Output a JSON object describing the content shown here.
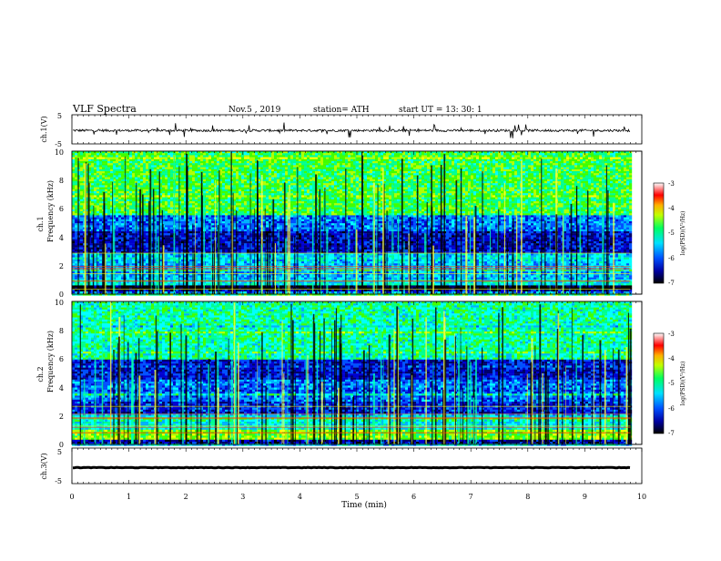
{
  "header": {
    "title": "VLF  Spectra",
    "date": "Nov.5  , 2019",
    "station": "station= ATH",
    "start": "start  UT  =    13: 30: 1"
  },
  "chart_data": [
    {
      "type": "line",
      "panel": "ch1-waveform",
      "ylabel": "ch.1(V)",
      "yticks": [
        "5",
        "-5"
      ],
      "ylim": [
        -5,
        5
      ],
      "xlim": [
        0,
        10
      ],
      "data_xlim": [
        0,
        9.8
      ],
      "baseline": -0.4,
      "noise_amplitude": 0.8,
      "spike_amplitude": 2.6,
      "line_color": "#000000"
    },
    {
      "type": "heatmap",
      "panel": "ch1-spectrogram",
      "ylabel": "ch.1",
      "ylabel2": "Frequency  (kHz)",
      "yticks": [
        "10",
        "8",
        "6",
        "4",
        "2",
        "0"
      ],
      "ylim": [
        0,
        10
      ],
      "xlim": [
        0,
        10
      ],
      "data_xlim": [
        0,
        9.8
      ],
      "band_levels": [
        {
          "f0": 0.0,
          "f1": 0.25,
          "level": 0.3
        },
        {
          "f0": 0.25,
          "f1": 0.6,
          "level": 0.05
        },
        {
          "f0": 0.6,
          "f1": 1.0,
          "level": 0.42
        },
        {
          "f0": 1.0,
          "f1": 2.2,
          "level": 0.35
        },
        {
          "f0": 2.2,
          "f1": 2.8,
          "level": 0.38
        },
        {
          "f0": 2.8,
          "f1": 4.5,
          "level": 0.18
        },
        {
          "f0": 4.5,
          "f1": 5.5,
          "level": 0.3
        },
        {
          "f0": 5.5,
          "f1": 10.0,
          "level": 0.55
        }
      ],
      "colorbar": {
        "label": "log(PSD)(V²/Hz)",
        "ticks": [
          "-3",
          "-4",
          "-5",
          "-6",
          "-7"
        ],
        "range": [
          -7,
          -3
        ]
      }
    },
    {
      "type": "heatmap",
      "panel": "ch2-spectrogram",
      "ylabel": "ch.2",
      "ylabel2": "Frequency  (kHz)",
      "yticks": [
        "10",
        "8",
        "6",
        "4",
        "2",
        "0"
      ],
      "ylim": [
        0,
        10
      ],
      "xlim": [
        0,
        10
      ],
      "data_xlim": [
        0,
        9.8
      ],
      "band_levels": [
        {
          "f0": 0.0,
          "f1": 0.3,
          "level": 0.15
        },
        {
          "f0": 0.3,
          "f1": 1.0,
          "level": 0.62
        },
        {
          "f0": 1.0,
          "f1": 2.0,
          "level": 0.42
        },
        {
          "f0": 2.0,
          "f1": 3.0,
          "level": 0.22
        },
        {
          "f0": 3.0,
          "f1": 4.5,
          "level": 0.3
        },
        {
          "f0": 4.5,
          "f1": 6.0,
          "level": 0.2
        },
        {
          "f0": 6.0,
          "f1": 10.0,
          "level": 0.48
        }
      ],
      "colorbar": {
        "label": "log(PSD)(V²/Hz)",
        "ticks": [
          "-3",
          "-4",
          "-5",
          "-6",
          "-7"
        ],
        "range": [
          -7,
          -3
        ]
      }
    },
    {
      "type": "line",
      "panel": "ch3-waveform",
      "ylabel": "ch.3(V)",
      "yticks": [
        "5",
        "-5"
      ],
      "ylim": [
        -5,
        5
      ],
      "xlim": [
        0,
        10
      ],
      "data_xlim": [
        0,
        9.8
      ],
      "baseline": -0.5,
      "noise_amplitude": 0.15,
      "line_color": "#000000"
    }
  ],
  "x_axis": {
    "label": "Time  (min)",
    "ticks": [
      "0",
      "1",
      "2",
      "3",
      "4",
      "5",
      "6",
      "7",
      "8",
      "9",
      "10"
    ],
    "range": [
      0,
      10
    ]
  },
  "colormap": [
    "#000080",
    "#0000ff",
    "#0080ff",
    "#00ffff",
    "#00ff80",
    "#80ff00",
    "#ffff00",
    "#ff8000",
    "#ff0000",
    "#ffffff"
  ]
}
